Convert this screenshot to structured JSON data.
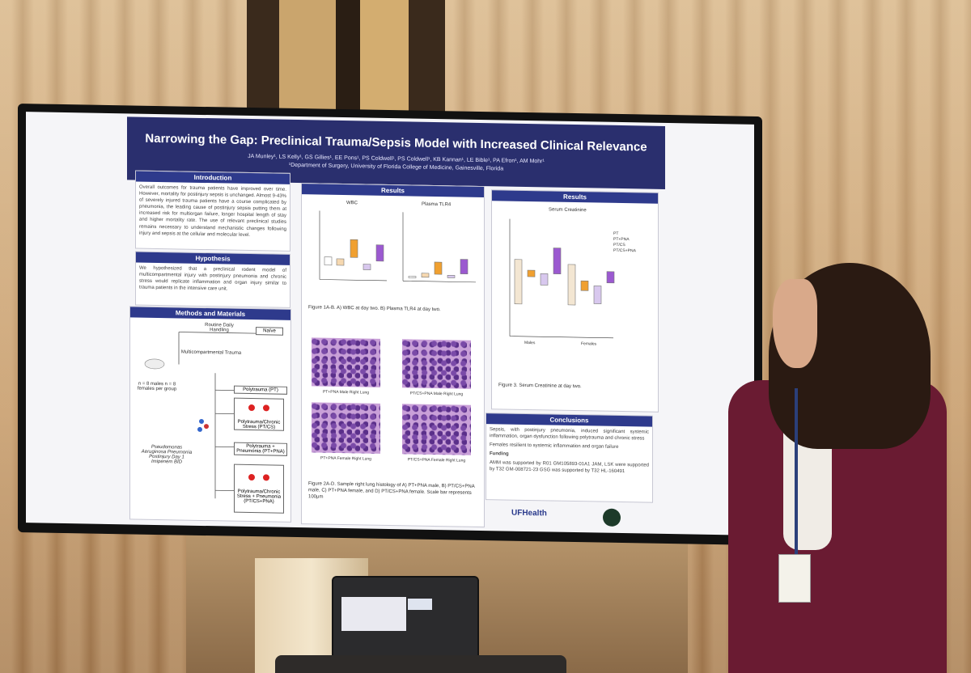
{
  "poster": {
    "title": "Narrowing the Gap: Preclinical Trauma/Sepsis Model with Increased Clinical Relevance",
    "authors": "JA Munley¹, LS Kelly¹, GS Gillies¹, EE Pons¹, PS Coldwell¹, PS Coldwell¹, KB Kannan¹, LE Bible¹, PA Efron¹, AM Mohr¹",
    "department": "¹Department of Surgery, University of Florida College of Medicine, Gainesville, Florida",
    "introduction": {
      "heading": "Introduction",
      "text": "Overall outcomes for trauma patients have improved over time. However, mortality for postinjury sepsis is unchanged. Almost 9-43% of severely injured trauma patients have a course complicated by pneumonia, the leading cause of postinjury sepsis putting them at increased risk for multiorgan failure, longer hospital length of stay and higher mortality rate. The use of relevant preclinical studies remains necessary to understand mechanistic changes following injury and sepsis at the cellular and molecular level."
    },
    "hypothesis": {
      "heading": "Hypothesis",
      "text": "We hypothesized that a preclinical rodent model of multicompartmental injury with postinjury pneumonia and chronic stress would replicate inflammation and organ injury similar to trauma patients in the intensive care unit."
    },
    "methods": {
      "heading": "Methods and Materials",
      "routine": "Routine Daily Handling",
      "naive": "Naïve",
      "multi": "Multicompartmental Trauma",
      "n": "n = 8 males n = 8 females per group",
      "pt": "Polytrauma (PT)",
      "ptcs": "Polytrauma/Chronic Stress (PT/CS)",
      "ptpna": "Polytrauma + Pneumonia (PT+PNA)",
      "pseudo": "Pseudomonas Aeruginosa Pneumonia Postinjury Day 1 Imipenem BID",
      "ptcspna": "Polytrauma/Chronic Stress + Pneumonia (PT/CS+PNA)"
    },
    "results1": {
      "heading": "Results",
      "wbc": "WBC",
      "tlr4": "Plasma TLR4",
      "fig1": "Figure 1A-B. A) WBC at day two. B) Plasma TLR4 at day two.",
      "h1": "PT+PNA Male Right Lung",
      "h2": "PT/CS+PNA Male Right Lung",
      "h3": "PT+PNA Female Right Lung",
      "h4": "PT/CS+PNA Female Right Lung",
      "fig2": "Figure 2A-D. Sample right lung histology of A) PT+PNA male, B) PT/CS+PNA male, C) PT+PNA female, and D) PT/CS+PNA female. Scale bar represents 100μm"
    },
    "results2": {
      "heading": "Results",
      "chart": "Serum Creatinine",
      "males": "Males",
      "females": "Females",
      "fig3": "Figure 3. Serum Creatinine at day two.",
      "legend": [
        "PT",
        "PT+PNA",
        "PT/CS",
        "PT/CS+PNA"
      ]
    },
    "conclusions": {
      "heading": "Conclusions",
      "b1": "Sepsis, with postinjury pneumonia, induced significant systemic inflammation, organ dysfunction following polytrauma and chronic stress",
      "b2": "Females resilient to systemic inflammation and organ failure",
      "funding_head": "Funding",
      "funding": "AMM was supported by R01 GM105893-01A1 JAM, LSK were supported by T32 GM-008721-23 GSG was supported by T32 HL-160491"
    },
    "logo": "UFHealth"
  },
  "colors": {
    "poster_header": "#2a2f6e",
    "section_header": "#2e3a8c",
    "purple": "#9b59d0",
    "orange": "#f0a030"
  }
}
